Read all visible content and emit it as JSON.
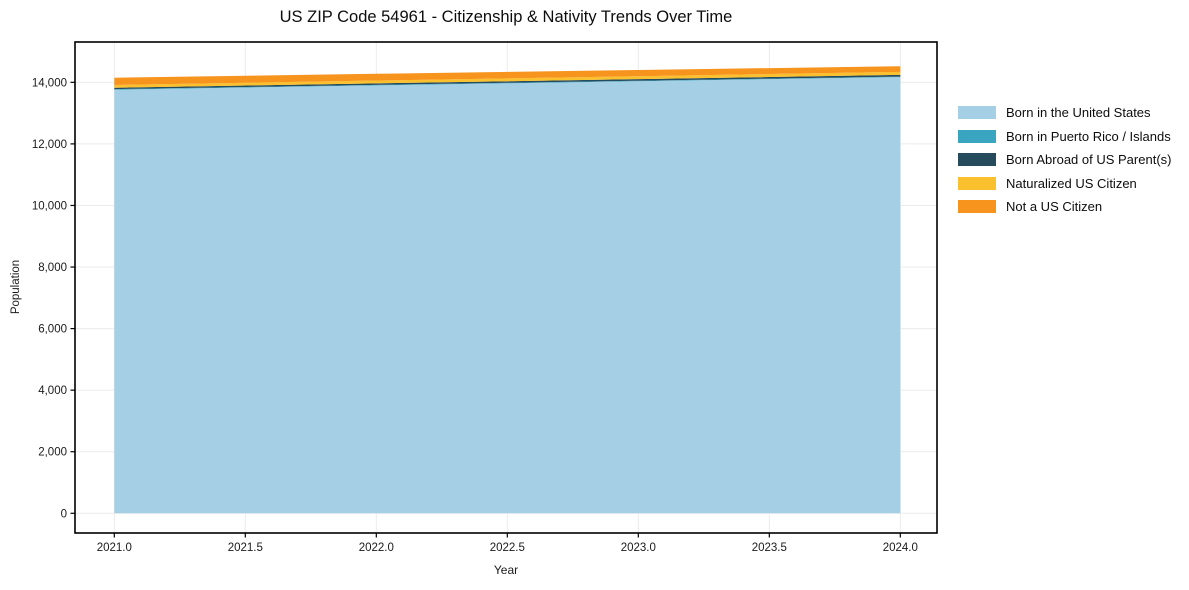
{
  "chart_data": {
    "type": "area",
    "stacked": true,
    "title": "US ZIP Code 54961 - Citizenship & Nativity Trends Over Time",
    "xlabel": "Year",
    "ylabel": "Population",
    "x": [
      2021,
      2022,
      2023,
      2024
    ],
    "series": [
      {
        "name": "Born in the United States",
        "color": "#a5cfe5",
        "values": [
          13760,
          13900,
          14035,
          14170
        ]
      },
      {
        "name": "Born in Puerto Rico / Islands",
        "color": "#3aa5c1",
        "values": [
          20,
          18,
          17,
          16
        ]
      },
      {
        "name": "Born Abroad of US Parent(s)",
        "color": "#264b5d",
        "values": [
          45,
          49,
          52,
          56
        ]
      },
      {
        "name": "Naturalized US Citizen",
        "color": "#fbc02d",
        "values": [
          88,
          91,
          94,
          97
        ]
      },
      {
        "name": "Not a US Citizen",
        "color": "#f7941e",
        "values": [
          237,
          220,
          203,
          185
        ]
      }
    ],
    "totals": [
      14150,
      14278,
      14401,
      14524
    ],
    "xlim": [
      2020.85,
      2024.14
    ],
    "ylim": [
      -640,
      15310
    ],
    "x_ticks": [
      2021.0,
      2021.5,
      2022.0,
      2022.5,
      2023.0,
      2023.5,
      2024.0
    ],
    "x_tick_labels": [
      "2021.0",
      "2021.5",
      "2022.0",
      "2022.5",
      "2023.0",
      "2023.5",
      "2024.0"
    ],
    "y_ticks": [
      0,
      2000,
      4000,
      6000,
      8000,
      10000,
      12000,
      14000
    ],
    "y_tick_labels": [
      "0",
      "2,000",
      "4,000",
      "6,000",
      "8,000",
      "10,000",
      "12,000",
      "14,000"
    ],
    "grid": true,
    "legend_position": "right-of-plot",
    "colors": {
      "grid": "#ebebeb",
      "frame": "#000000",
      "tick_label": "#1a1a1a",
      "background": "#ffffff"
    }
  }
}
